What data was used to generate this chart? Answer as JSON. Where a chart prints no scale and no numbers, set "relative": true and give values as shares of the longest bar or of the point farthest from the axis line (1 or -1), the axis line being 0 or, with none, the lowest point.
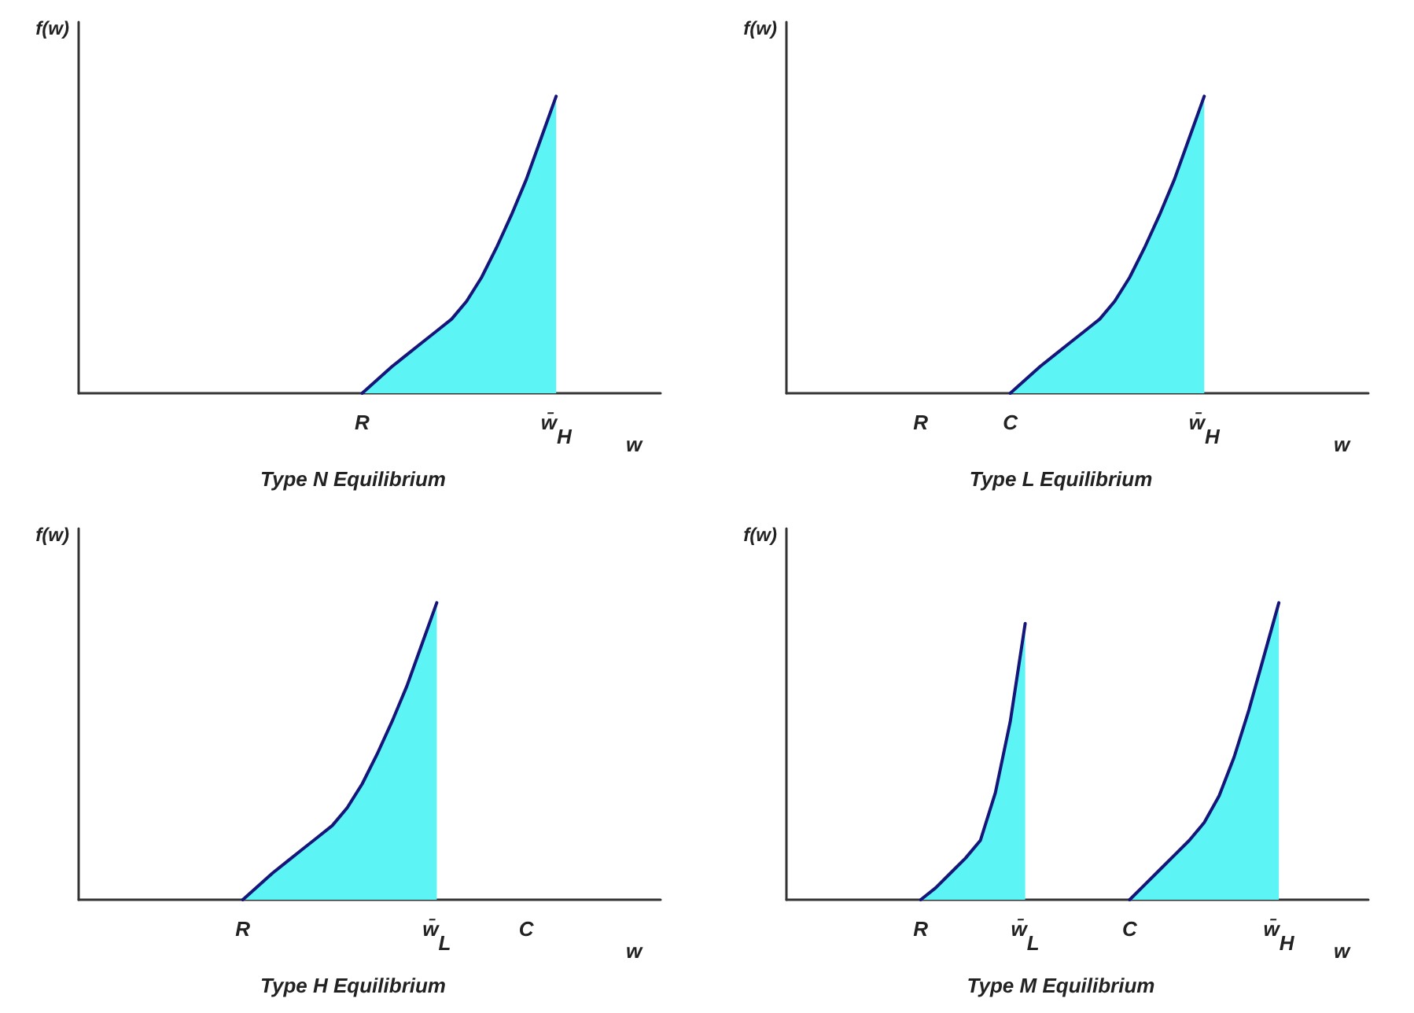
{
  "chart_data": [
    {
      "type": "area",
      "title": "Type N Equilibrium",
      "xlabel": "w",
      "ylabel": "f(w)",
      "relative": true,
      "categories": [
        null,
        null,
        null,
        null,
        null,
        null,
        null,
        null,
        null,
        null,
        null,
        null,
        null,
        null,
        null,
        null,
        null,
        null,
        null,
        "R",
        null,
        null,
        null,
        null,
        null,
        null,
        null,
        null,
        null,
        null,
        null,
        null,
        "w̄$_{H}$",
        null,
        null,
        null,
        null,
        null,
        null,
        null
      ],
      "series": [
        {
          "color": "#5cf4f4",
          "values": [
            null,
            null,
            null,
            null,
            null,
            null,
            null,
            null,
            null,
            null,
            null,
            null,
            null,
            null,
            null,
            null,
            null,
            null,
            null,
            0,
            0.045,
            0.09,
            0.13,
            0.17,
            0.21,
            0.25,
            0.31,
            0.39,
            0.49,
            0.6,
            0.72,
            0.86,
            1,
            null,
            null,
            null,
            null,
            null,
            null,
            null
          ]
        }
      ]
    },
    {
      "type": "area",
      "title": "Type L Equilibrium",
      "xlabel": "w",
      "ylabel": "f(w)",
      "relative": true,
      "categories": [
        null,
        null,
        null,
        null,
        null,
        null,
        null,
        null,
        null,
        "R",
        null,
        null,
        null,
        null,
        null,
        "C",
        null,
        null,
        null,
        null,
        null,
        null,
        null,
        null,
        null,
        null,
        null,
        null,
        "w̄$_{H}$",
        null,
        null,
        null,
        null,
        null,
        null,
        null,
        null,
        null,
        null,
        null
      ],
      "series": [
        {
          "color": "#5cf4f4",
          "values": [
            null,
            null,
            null,
            null,
            null,
            null,
            null,
            null,
            null,
            null,
            null,
            null,
            null,
            null,
            null,
            0,
            0.045,
            0.09,
            0.13,
            0.17,
            0.21,
            0.25,
            0.31,
            0.39,
            0.49,
            0.6,
            0.72,
            0.86,
            1,
            null,
            null,
            null,
            null,
            null,
            null,
            null,
            null,
            null,
            null,
            null
          ]
        }
      ]
    },
    {
      "type": "area",
      "title": "Type H Equilibrium",
      "xlabel": "w",
      "ylabel": "f(w)",
      "relative": true,
      "categories": [
        null,
        null,
        null,
        null,
        null,
        null,
        null,
        null,
        null,
        null,
        null,
        "R",
        null,
        null,
        null,
        null,
        null,
        null,
        null,
        null,
        null,
        null,
        null,
        null,
        "w̄$_{L}$",
        null,
        null,
        null,
        null,
        null,
        "C",
        null,
        null,
        null,
        null,
        null,
        null,
        null,
        null,
        null
      ],
      "series": [
        {
          "color": "#5cf4f4",
          "values": [
            null,
            null,
            null,
            null,
            null,
            null,
            null,
            null,
            null,
            null,
            null,
            0,
            0.045,
            0.09,
            0.13,
            0.17,
            0.21,
            0.25,
            0.31,
            0.39,
            0.49,
            0.6,
            0.72,
            0.86,
            1,
            null,
            null,
            null,
            null,
            null,
            null,
            null,
            null,
            null,
            null,
            null,
            null,
            null,
            null,
            null
          ]
        }
      ]
    },
    {
      "type": "area",
      "title": "Type M Equilibrium",
      "xlabel": "w",
      "ylabel": "f(w)",
      "relative": true,
      "categories": [
        null,
        null,
        null,
        null,
        null,
        null,
        null,
        null,
        null,
        "R",
        null,
        null,
        null,
        null,
        null,
        null,
        "w̄$_{L}$",
        null,
        null,
        null,
        null,
        null,
        null,
        "C",
        null,
        null,
        null,
        null,
        null,
        null,
        null,
        null,
        null,
        "w̄$_{H}$",
        null,
        null,
        null,
        null,
        null,
        null
      ],
      "series": [
        {
          "color": "#5cf4f4",
          "values": [
            null,
            null,
            null,
            null,
            null,
            null,
            null,
            null,
            null,
            0,
            0.04,
            0.09,
            0.14,
            0.2,
            0.36,
            0.6,
            0.93,
            null,
            null,
            null,
            null,
            null,
            null,
            0,
            0.05,
            0.1,
            0.15,
            0.2,
            0.26,
            0.35,
            0.48,
            0.64,
            0.82,
            1,
            null,
            null,
            null,
            null,
            null,
            null
          ]
        }
      ]
    }
  ]
}
